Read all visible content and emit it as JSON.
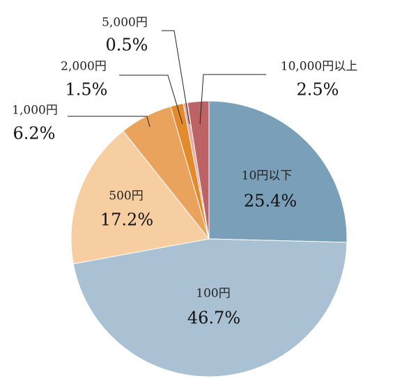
{
  "chart_data": {
    "type": "pie",
    "start_angle_deg": 0,
    "direction": "clockwise",
    "slices": [
      {
        "label": "10円以下",
        "value": 25.4,
        "value_label": "25.4%",
        "color": "#7a9fb9"
      },
      {
        "label": "100円",
        "value": 46.7,
        "value_label": "46.7%",
        "color": "#a9c1d2"
      },
      {
        "label": "500円",
        "value": 17.2,
        "value_label": "17.2%",
        "color": "#f7cda2"
      },
      {
        "label": "1,000円",
        "value": 6.2,
        "value_label": "6.2%",
        "color": "#e9a35d"
      },
      {
        "label": "2,000円",
        "value": 1.5,
        "value_label": "1.5%",
        "color": "#e38a2c"
      },
      {
        "label": "5,000円",
        "value": 0.5,
        "value_label": "0.5%",
        "color": "#e6aaa8"
      },
      {
        "label": "10,000円以上",
        "value": 2.5,
        "value_label": "2.5%",
        "color": "#bd6365"
      }
    ]
  }
}
